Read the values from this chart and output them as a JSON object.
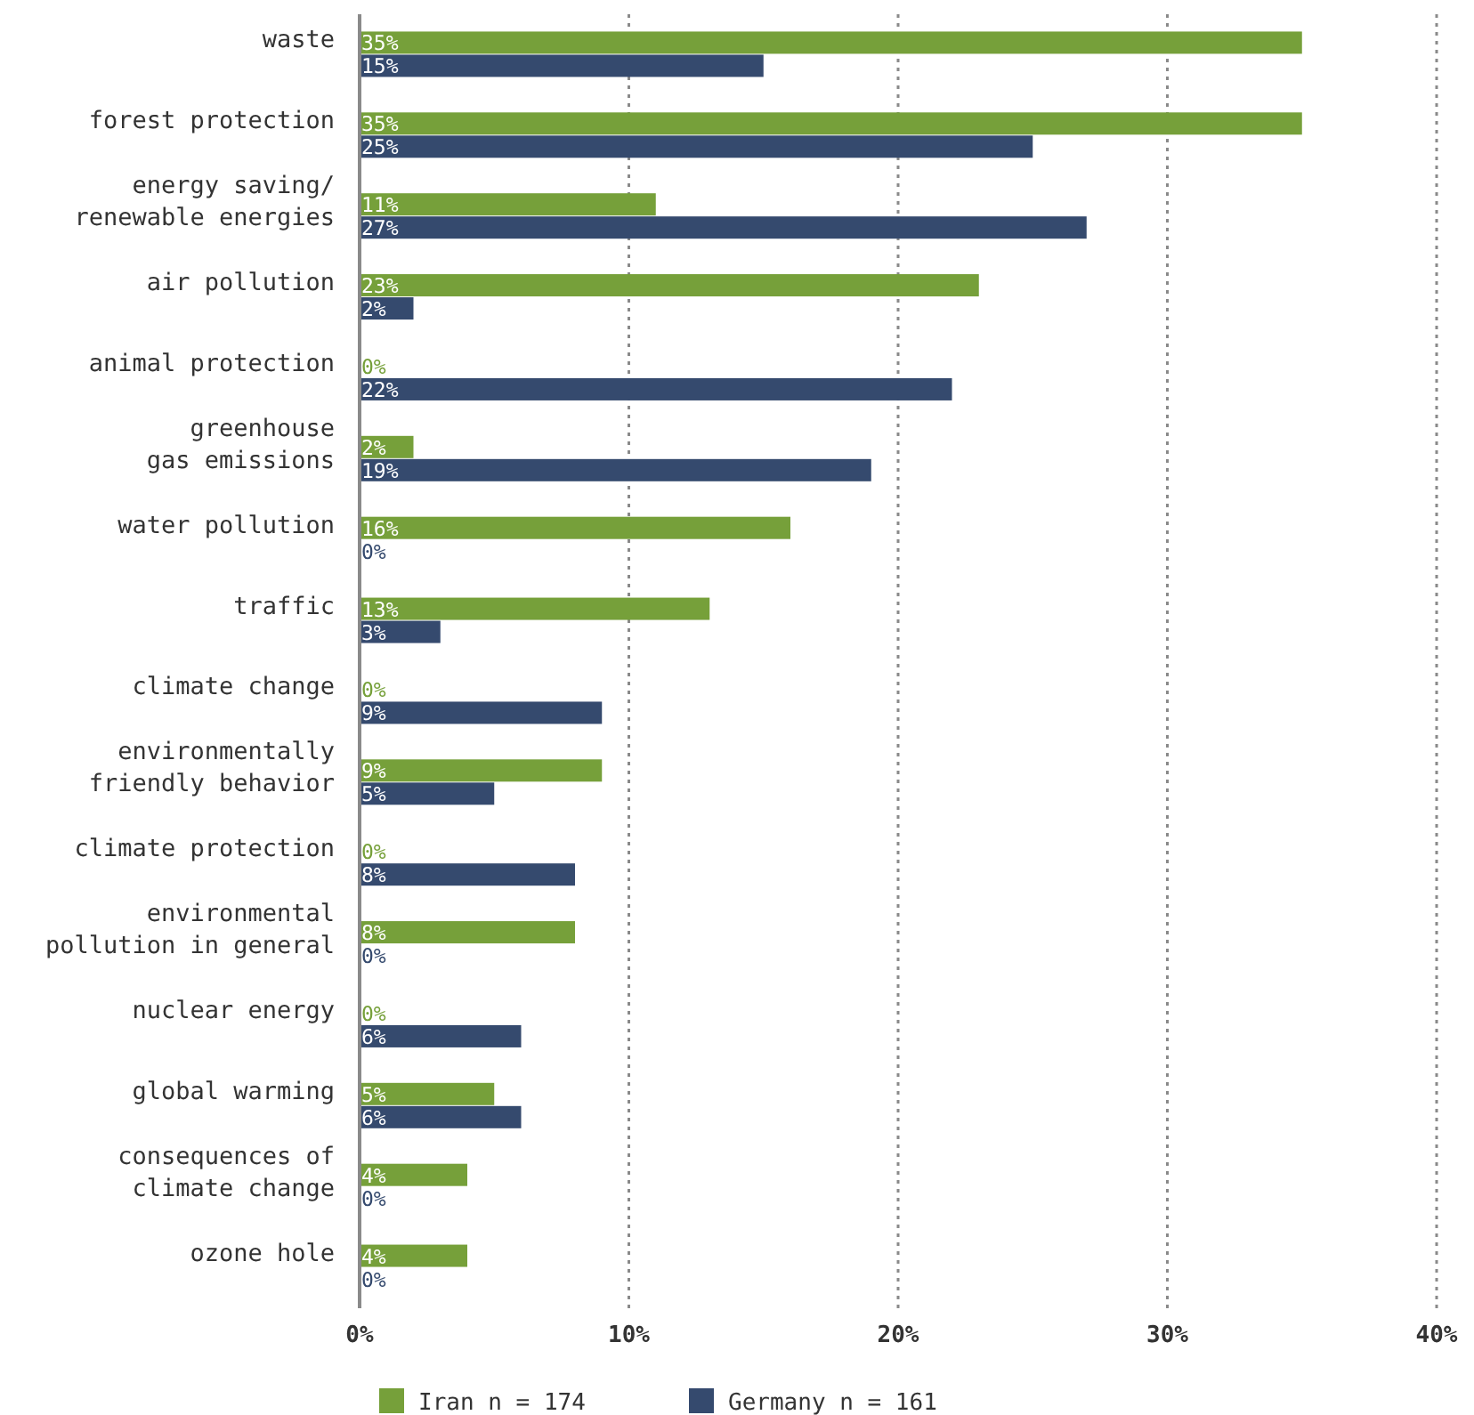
{
  "chart_data": {
    "type": "bar",
    "orientation": "horizontal",
    "categories": [
      "waste",
      "forest protection",
      "energy saving/\nrenewable energies",
      "air pollution",
      "animal protection",
      "greenhouse\ngas emissions",
      "water pollution",
      "traffic",
      "climate change",
      "environmentally\nfriendly behavior",
      "climate protection",
      "environmental\npollution in general",
      "nuclear energy",
      "global warming",
      "consequences of\nclimate change",
      "ozone hole"
    ],
    "series": [
      {
        "name": "Iran n = 174",
        "color": "#76a03a",
        "values": [
          35,
          35,
          11,
          23,
          0,
          2,
          16,
          13,
          0,
          9,
          0,
          8,
          0,
          5,
          4,
          4
        ],
        "value_labels": [
          "35%",
          "35%",
          "11%",
          "23%",
          "0%",
          "2%",
          "16%",
          "13%",
          "0%",
          "9%",
          "0%",
          "8%",
          "0%",
          "5%",
          "4%",
          "4%"
        ]
      },
      {
        "name": "Germany n = 161",
        "color": "#354a6e",
        "values": [
          15,
          25,
          27,
          2,
          22,
          19,
          0,
          3,
          9,
          5,
          8,
          0,
          6,
          6,
          0,
          0
        ],
        "value_labels": [
          "15%",
          "25%",
          "27%",
          "2%",
          "22%",
          "19%",
          "0%",
          "3%",
          "9%",
          "5%",
          "8%",
          "0%",
          "6%",
          "6%",
          "0%",
          "0%"
        ]
      }
    ],
    "xlim": [
      0,
      40
    ],
    "xticks": [
      {
        "value": 0,
        "label": "0%"
      },
      {
        "value": 10,
        "label": "10%"
      },
      {
        "value": 20,
        "label": "20%"
      },
      {
        "value": 30,
        "label": "30%"
      },
      {
        "value": 40,
        "label": "40%"
      }
    ],
    "grid": "x",
    "legend": "bottom"
  }
}
